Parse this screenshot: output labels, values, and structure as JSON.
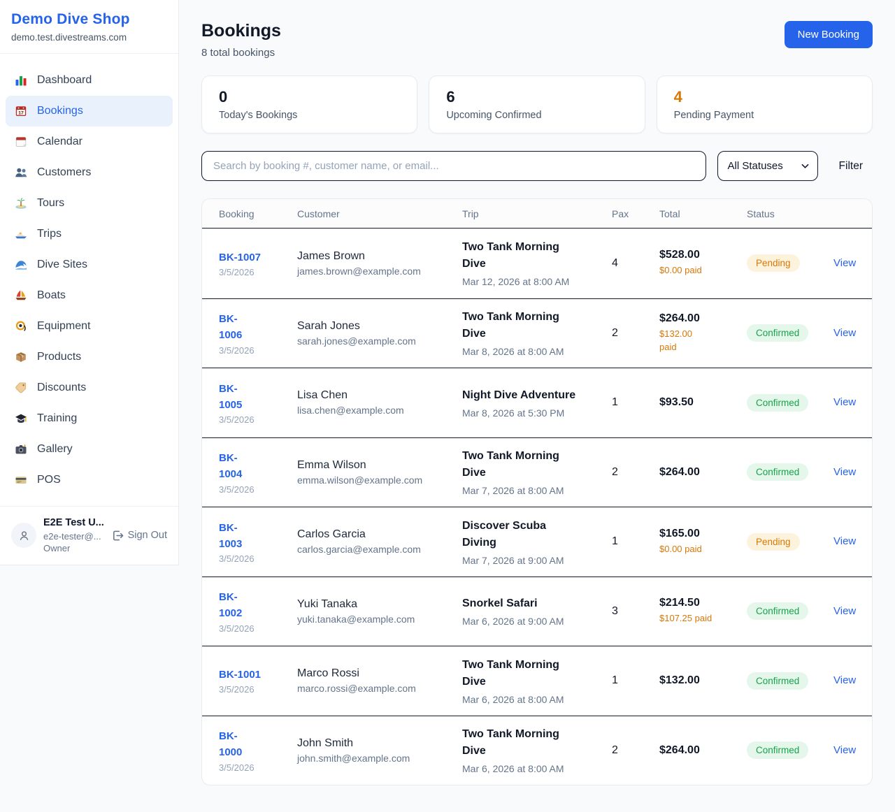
{
  "brand": {
    "name": "Demo Dive Shop",
    "domain": "demo.test.divestreams.com"
  },
  "sidebar": {
    "items": [
      {
        "icon": "bar-chart-icon",
        "label": "Dashboard",
        "active": false
      },
      {
        "icon": "calendar-icon",
        "label": "Bookings",
        "active": true
      },
      {
        "icon": "calendar-pad-icon",
        "label": "Calendar",
        "active": false
      },
      {
        "icon": "people-icon",
        "label": "Customers",
        "active": false
      },
      {
        "icon": "island-icon",
        "label": "Tours",
        "active": false
      },
      {
        "icon": "speedboat-icon",
        "label": "Trips",
        "active": false
      },
      {
        "icon": "wave-icon",
        "label": "Dive Sites",
        "active": false
      },
      {
        "icon": "sailboat-icon",
        "label": "Boats",
        "active": false
      },
      {
        "icon": "dive-mask-icon",
        "label": "Equipment",
        "active": false
      },
      {
        "icon": "package-icon",
        "label": "Products",
        "active": false
      },
      {
        "icon": "tag-icon",
        "label": "Discounts",
        "active": false
      },
      {
        "icon": "grad-cap-icon",
        "label": "Training",
        "active": false
      },
      {
        "icon": "camera-icon",
        "label": "Gallery",
        "active": false
      },
      {
        "icon": "credit-card-icon",
        "label": "POS",
        "active": false
      }
    ]
  },
  "user": {
    "name": "E2E Test U...",
    "email": "e2e-tester@...",
    "role": "Owner",
    "sign_out_label": "Sign Out"
  },
  "header": {
    "title": "Bookings",
    "subtitle": "8 total bookings",
    "new_booking_label": "New Booking"
  },
  "stats": [
    {
      "value": "0",
      "label": "Today's Bookings",
      "accent": false
    },
    {
      "value": "6",
      "label": "Upcoming Confirmed",
      "accent": false
    },
    {
      "value": "4",
      "label": "Pending Payment",
      "accent": true
    }
  ],
  "filters": {
    "search_placeholder": "Search by booking #, customer name, or email...",
    "status_selected": "All Statuses",
    "filter_label": "Filter"
  },
  "table": {
    "columns": [
      "Booking",
      "Customer",
      "Trip",
      "Pax",
      "Total",
      "Status"
    ],
    "view_label": "View",
    "rows": [
      {
        "id": "BK-1007",
        "date": "3/5/2026",
        "customer": "James Brown",
        "email": "james.brown@example.com",
        "trip": "Two Tank Morning\nDive",
        "datetime": "Mar 12, 2026 at 8:00 AM",
        "pax": "4",
        "total": "$528.00",
        "paid": "$0.00 paid",
        "status": "Pending"
      },
      {
        "id": "BK-\n1006",
        "date": "3/5/2026",
        "customer": "Sarah Jones",
        "email": "sarah.jones@example.com",
        "trip": "Two Tank Morning\nDive",
        "datetime": "Mar 8, 2026 at 8:00 AM",
        "pax": "2",
        "total": "$264.00",
        "paid": "$132.00\npaid",
        "status": "Confirmed"
      },
      {
        "id": "BK-\n1005",
        "date": "3/5/2026",
        "customer": "Lisa Chen",
        "email": "lisa.chen@example.com",
        "trip": "Night Dive Adventure",
        "datetime": "Mar 8, 2026 at 5:30 PM",
        "pax": "1",
        "total": "$93.50",
        "paid": null,
        "status": "Confirmed"
      },
      {
        "id": "BK-\n1004",
        "date": "3/5/2026",
        "customer": "Emma Wilson",
        "email": "emma.wilson@example.com",
        "trip": "Two Tank Morning\nDive",
        "datetime": "Mar 7, 2026 at 8:00 AM",
        "pax": "2",
        "total": "$264.00",
        "paid": null,
        "status": "Confirmed"
      },
      {
        "id": "BK-\n1003",
        "date": "3/5/2026",
        "customer": "Carlos Garcia",
        "email": "carlos.garcia@example.com",
        "trip": "Discover Scuba\nDiving",
        "datetime": "Mar 7, 2026 at 9:00 AM",
        "pax": "1",
        "total": "$165.00",
        "paid": "$0.00 paid",
        "status": "Pending"
      },
      {
        "id": "BK-\n1002",
        "date": "3/5/2026",
        "customer": "Yuki Tanaka",
        "email": "yuki.tanaka@example.com",
        "trip": "Snorkel Safari",
        "datetime": "Mar 6, 2026 at 9:00 AM",
        "pax": "3",
        "total": "$214.50",
        "paid": "$107.25 paid",
        "status": "Confirmed"
      },
      {
        "id": "BK-1001",
        "date": "3/5/2026",
        "customer": "Marco Rossi",
        "email": "marco.rossi@example.com",
        "trip": "Two Tank Morning\nDive",
        "datetime": "Mar 6, 2026 at 8:00 AM",
        "pax": "1",
        "total": "$132.00",
        "paid": null,
        "status": "Confirmed"
      },
      {
        "id": "BK-\n1000",
        "date": "3/5/2026",
        "customer": "John Smith",
        "email": "john.smith@example.com",
        "trip": "Two Tank Morning\nDive",
        "datetime": "Mar 6, 2026 at 8:00 AM",
        "pax": "2",
        "total": "$264.00",
        "paid": null,
        "status": "Confirmed"
      }
    ]
  },
  "colors": {
    "brand_blue": "#2563eb",
    "pending_orange": "#d97706",
    "pending_bg": "#fdf3dd",
    "confirmed_green": "#16a34a",
    "confirmed_bg": "#e4f7ea"
  }
}
